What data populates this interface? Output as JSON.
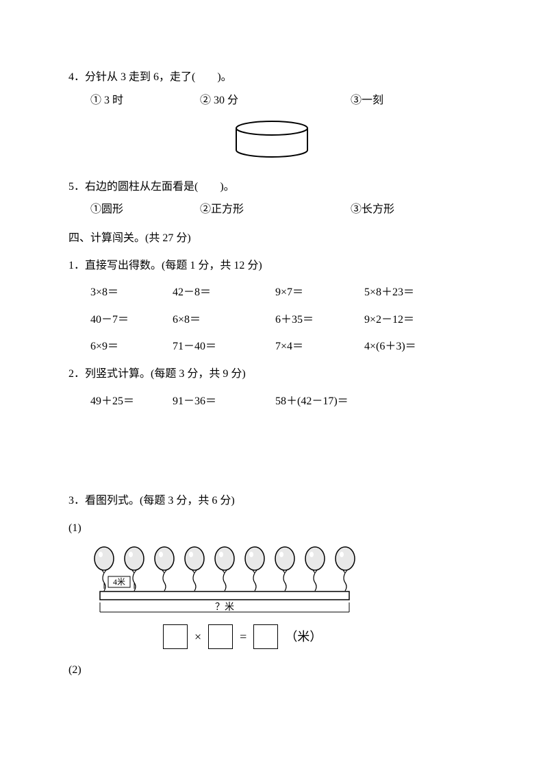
{
  "q4": {
    "number": "4．",
    "text": "分针从 3 走到 6，走了(　　)。",
    "choices": {
      "c1": "①  3 时",
      "c2": "②  30 分",
      "c3": "③一刻"
    }
  },
  "cylinder": {
    "stroke": "#000000",
    "fill": "#ffffff"
  },
  "q5": {
    "number": "5．",
    "text": "右边的圆柱从左面看是(　　)。",
    "choices": {
      "c1": "①圆形",
      "c2": "②正方形",
      "c3": "③长方形"
    }
  },
  "section4": {
    "header": "四、计算闯关。(共 27 分)"
  },
  "sub1": {
    "header": "1．直接写出得数。(每题 1 分，共 12 分)",
    "rows": [
      {
        "c1": "3×8＝",
        "c2": "42－8＝",
        "c3": "9×7＝",
        "c4": "5×8＋23＝"
      },
      {
        "c1": "40－7＝",
        "c2": "6×8＝",
        "c3": "6＋35＝",
        "c4": "9×2－12＝"
      },
      {
        "c1": "6×9＝",
        "c2": "71－40＝",
        "c3": "7×4＝",
        "c4": "4×(6＋3)＝"
      }
    ]
  },
  "sub2": {
    "header": "2．列竖式计算。(每题 3 分，共 9 分)",
    "items": {
      "i1": "49＋25＝",
      "i2": "91－36＝",
      "i3": "58＋(42－17)＝"
    }
  },
  "sub3": {
    "header": "3．看图列式。(每题 3 分，共 6 分)",
    "item1_label": "(1)",
    "item2_label": "(2)",
    "balloon": {
      "count": 9,
      "spacing_label": "4米",
      "question_label": "？米",
      "balloon_fill": "#e8e8e8",
      "balloon_stroke": "#000000",
      "bar_fill": "#ffffff",
      "bar_stroke": "#000000"
    },
    "equation": {
      "op_mult": "×",
      "op_eq": "=",
      "unit": "（米）"
    }
  }
}
